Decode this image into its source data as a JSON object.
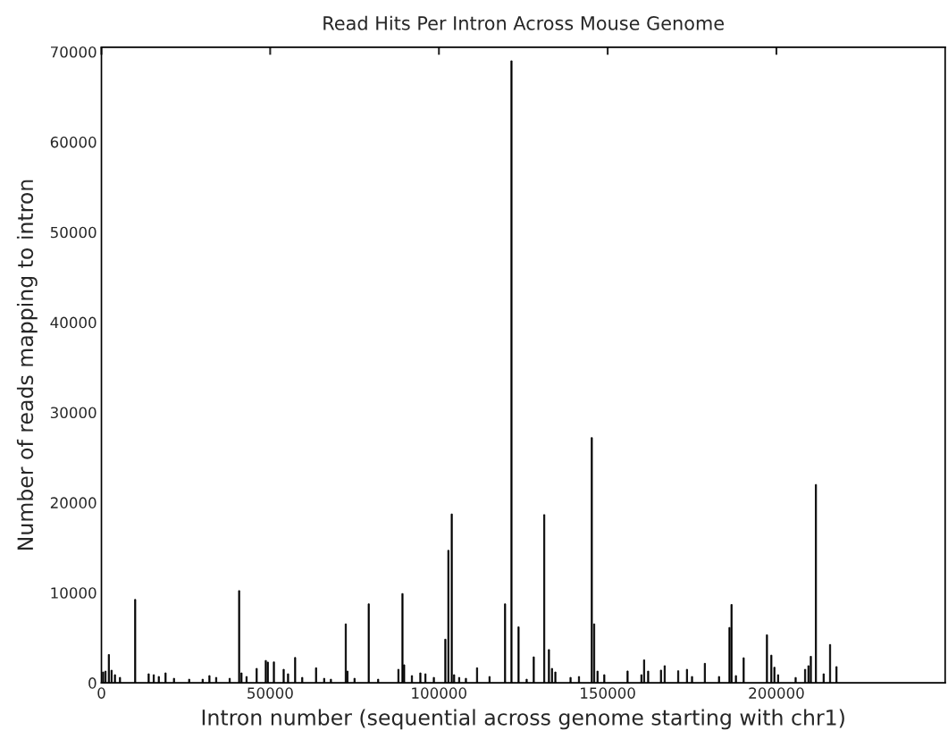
{
  "chart_data": {
    "type": "bar",
    "title": "Read Hits Per Intron Across Mouse Genome",
    "xlabel": "Intron number (sequential across genome starting with chr1)",
    "ylabel": "Number of reads mapping to intron",
    "color": "#000000",
    "x": [
      500,
      1200,
      2200,
      3000,
      4000,
      5500,
      10000,
      14000,
      15500,
      17000,
      19000,
      21500,
      26000,
      30000,
      32000,
      34000,
      38000,
      40800,
      41500,
      43000,
      46000,
      48700,
      49300,
      51100,
      54000,
      55300,
      57400,
      59500,
      63600,
      66000,
      68000,
      72400,
      72900,
      75000,
      79200,
      82000,
      88000,
      89200,
      89700,
      92000,
      94500,
      96000,
      98500,
      101900,
      102800,
      103800,
      104500,
      106000,
      108000,
      111300,
      115000,
      119600,
      121500,
      123600,
      126000,
      128100,
      131200,
      132600,
      133500,
      134500,
      139000,
      141500,
      145300,
      146000,
      147000,
      149000,
      155900,
      160000,
      160800,
      162000,
      165800,
      166900,
      170900,
      173500,
      175000,
      178800,
      183000,
      186100,
      186700,
      188000,
      190300,
      197200,
      198500,
      199400,
      200500,
      205700,
      208500,
      209500,
      210200,
      211700,
      214000,
      215900,
      217800
    ],
    "values": [
      1200,
      1300,
      3140,
      1400,
      900,
      600,
      9250,
      1000,
      900,
      700,
      1100,
      500,
      400,
      400,
      800,
      600,
      500,
      10230,
      1100,
      700,
      1600,
      2480,
      2300,
      2320,
      1500,
      1000,
      2810,
      600,
      1670,
      500,
      400,
      6540,
      1300,
      500,
      8760,
      400,
      1500,
      9900,
      2000,
      800,
      1100,
      1000,
      600,
      4840,
      14700,
      18730,
      900,
      600,
      500,
      1670,
      700,
      8760,
      69000,
      6210,
      400,
      2880,
      18660,
      3690,
      1600,
      1200,
      600,
      700,
      27200,
      6540,
      1300,
      900,
      1310,
      900,
      2550,
      1300,
      1410,
      1900,
      1340,
      1500,
      700,
      2160,
      700,
      6140,
      8690,
      800,
      2780,
      5330,
      3070,
      1730,
      900,
      590,
      1500,
      1900,
      2940,
      22000,
      1000,
      4250,
      1800
    ],
    "xlim": [
      0,
      250000
    ],
    "xticks": [
      0,
      50000,
      100000,
      150000,
      200000
    ],
    "ylim": [
      0,
      70500
    ],
    "yticks": [
      0,
      10000,
      20000,
      30000,
      40000,
      50000,
      60000,
      70000
    ],
    "grid": false
  }
}
